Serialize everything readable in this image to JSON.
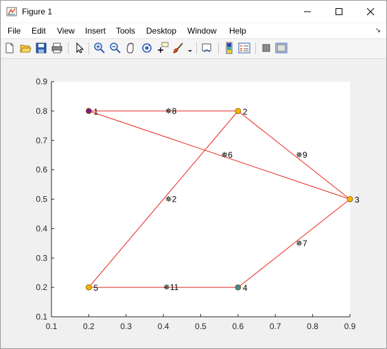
{
  "window": {
    "title": "Figure 1",
    "icon": "matlab-figure-icon",
    "controls": [
      "minimize-icon",
      "maximize-icon",
      "close-icon"
    ]
  },
  "menubar": {
    "items": [
      "File",
      "Edit",
      "View",
      "Insert",
      "Tools",
      "Desktop",
      "Window",
      "Help"
    ],
    "dock_icon": "dock-arrow-icon"
  },
  "toolbar": {
    "buttons": [
      "new-figure-icon",
      "open-file-icon",
      "save-icon",
      "print-icon",
      "edit-plot-arrow-icon",
      "zoom-in-icon",
      "zoom-out-icon",
      "pan-hand-icon",
      "rotate-3d-icon",
      "data-cursor-icon",
      "brush-icon",
      "link-plot-icon",
      "colorbar-icon",
      "legend-icon",
      "hide-plot-tools-icon",
      "show-plot-tools-icon"
    ]
  },
  "chart_data": {
    "type": "graph",
    "xlim": [
      0.1,
      0.9
    ],
    "ylim": [
      0.1,
      0.9
    ],
    "xticks": [
      "0.1",
      "0.2",
      "0.3",
      "0.4",
      "0.5",
      "0.6",
      "0.7",
      "0.8",
      "0.9"
    ],
    "yticks": [
      "0.1",
      "0.2",
      "0.3",
      "0.4",
      "0.5",
      "0.6",
      "0.7",
      "0.8",
      "0.9"
    ],
    "grid": false,
    "edge_color": "#e8241c",
    "nodes": [
      {
        "label": "1",
        "x": 0.2,
        "y": 0.8,
        "color": "#7a1f8c"
      },
      {
        "label": "2",
        "x": 0.6,
        "y": 0.8,
        "color": "#f5b400"
      },
      {
        "label": "3",
        "x": 0.9,
        "y": 0.5,
        "color": "#f5b400"
      },
      {
        "label": "4",
        "x": 0.6,
        "y": 0.2,
        "color": "#3e8b9a"
      },
      {
        "label": "5",
        "x": 0.2,
        "y": 0.2,
        "color": "#f5b400"
      }
    ],
    "edges": [
      {
        "from": "1",
        "to": "2",
        "label": "✵8",
        "lx": 0.42,
        "ly": 0.8
      },
      {
        "from": "1",
        "to": "3",
        "label": "✵6",
        "lx": 0.57,
        "ly": 0.65
      },
      {
        "from": "2",
        "to": "3",
        "label": "✵9",
        "lx": 0.77,
        "ly": 0.65
      },
      {
        "from": "2",
        "to": "5",
        "label": "✵2",
        "lx": 0.42,
        "ly": 0.5
      },
      {
        "from": "3",
        "to": "4",
        "label": "✵7",
        "lx": 0.77,
        "ly": 0.35
      },
      {
        "from": "5",
        "to": "4",
        "label": "✵11",
        "lx": 0.42,
        "ly": 0.2
      }
    ]
  }
}
